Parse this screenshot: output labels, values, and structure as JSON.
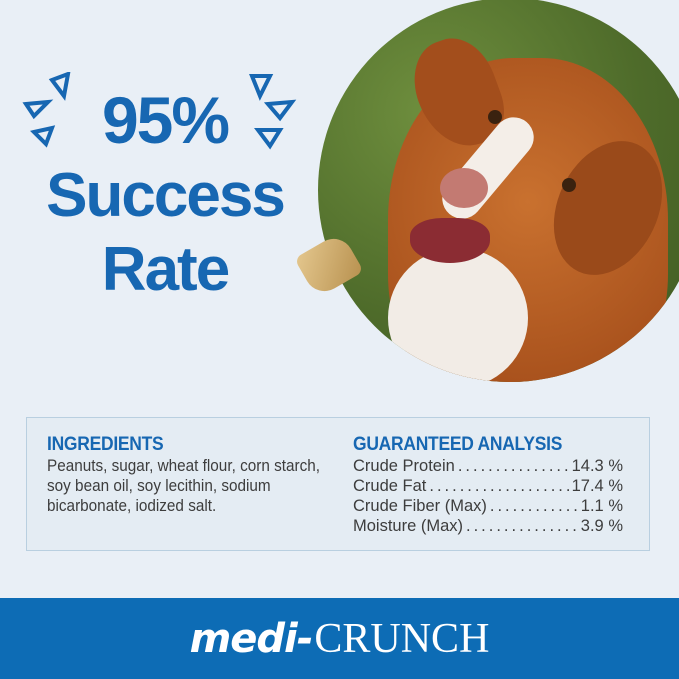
{
  "headline": {
    "line1": "95%",
    "line2": "Success",
    "line3": "Rate"
  },
  "ingredients": {
    "title": "INGREDIENTS",
    "text": "Peanuts, sugar, wheat flour, corn starch, soy bean oil, soy lecithin, sodium bicarbonate, iodized salt."
  },
  "analysis": {
    "title": "GUARANTEED ANALYSIS",
    "rows": [
      {
        "label": "Crude Protein",
        "value": "14.3 %"
      },
      {
        "label": "Crude Fat",
        "value": "17.4 %"
      },
      {
        "label": "Crude Fiber (Max)",
        "value": "1.1 %"
      },
      {
        "label": "Moisture (Max)",
        "value": "3.9 %"
      }
    ]
  },
  "brand": {
    "part1": "medi-",
    "part2": "CRUNCH"
  },
  "colors": {
    "accent": "#1767b2",
    "footer": "#0d6cb5",
    "background": "#e9eff6"
  }
}
